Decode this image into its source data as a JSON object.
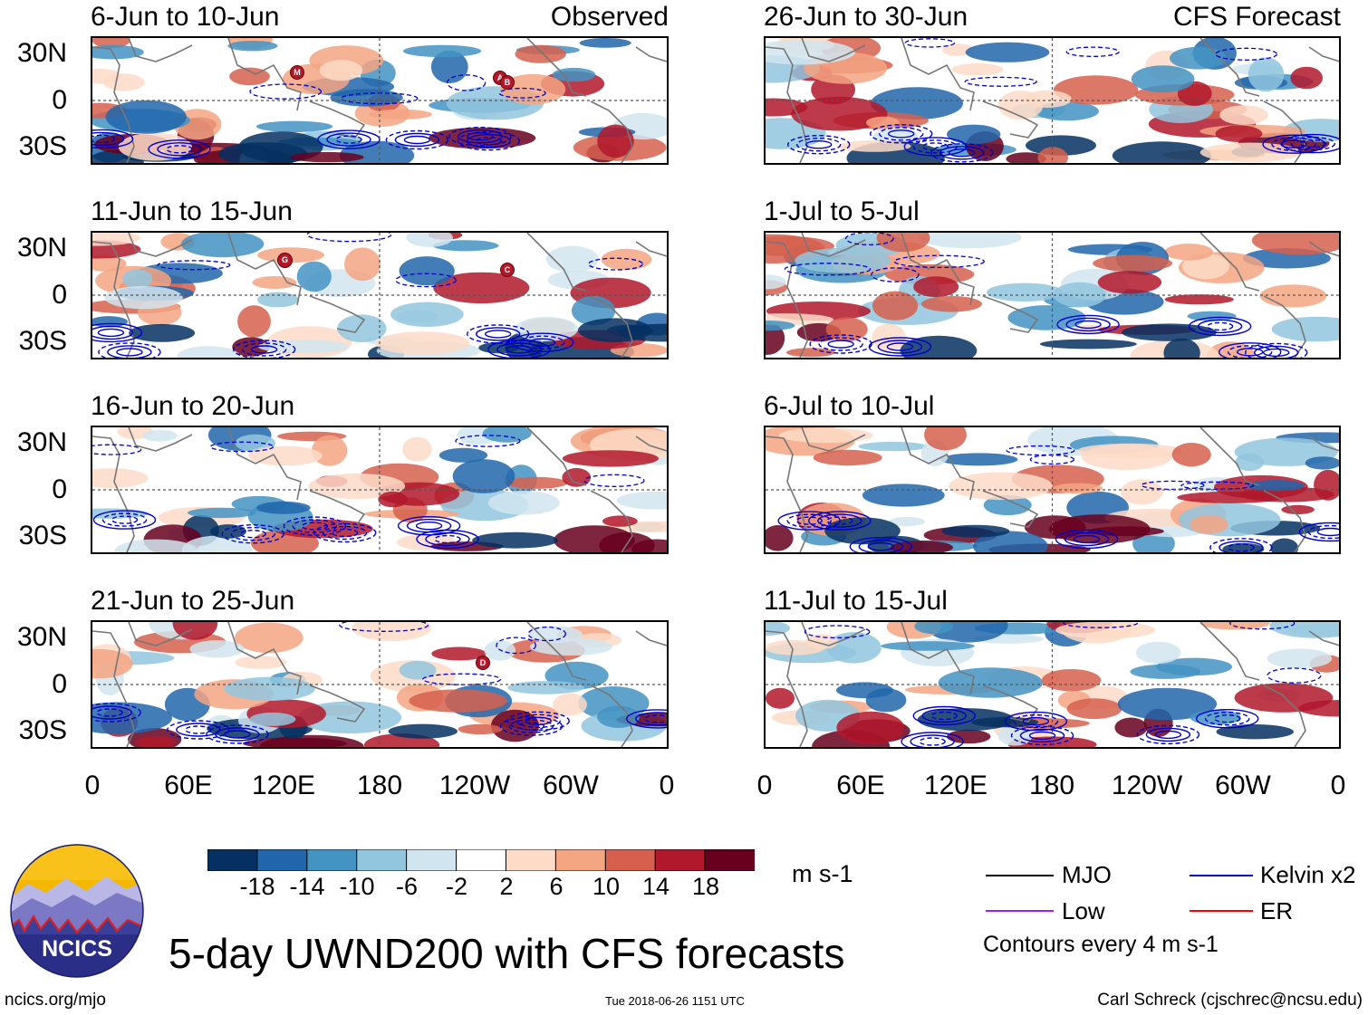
{
  "headers": {
    "observed": "Observed",
    "forecast": "CFS Forecast"
  },
  "panels": {
    "left": [
      {
        "title": "6-Jun to 10-Jun"
      },
      {
        "title": "11-Jun to 15-Jun"
      },
      {
        "title": "16-Jun to 20-Jun"
      },
      {
        "title": "21-Jun to 25-Jun"
      }
    ],
    "right": [
      {
        "title": "26-Jun to 30-Jun"
      },
      {
        "title": "1-Jul to 5-Jul"
      },
      {
        "title": "6-Jul to 10-Jul"
      },
      {
        "title": "11-Jul to 15-Jul"
      }
    ]
  },
  "axes": {
    "lat_labels": [
      "30N",
      "0",
      "30S"
    ],
    "lon_labels": [
      "0",
      "60E",
      "120E",
      "180",
      "120W",
      "60W",
      "0"
    ]
  },
  "storm_markers": {
    "p1": [
      "M",
      "A",
      "B"
    ],
    "p2": [
      "G",
      "C"
    ],
    "p4": [
      "D"
    ]
  },
  "colorbar": {
    "labels": [
      "-18",
      "-14",
      "-10",
      "-6",
      "-2",
      "2",
      "6",
      "10",
      "14",
      "18"
    ],
    "colors": [
      "#053061",
      "#2166ac",
      "#4393c3",
      "#92c5de",
      "#d1e5f0",
      "#ffffff",
      "#fddbc7",
      "#f4a582",
      "#d6604d",
      "#b2182b",
      "#67001f"
    ],
    "units": "m s-1"
  },
  "legend": {
    "items": [
      {
        "label": "MJO",
        "color": "#000000"
      },
      {
        "label": "Kelvin x2",
        "color": "#0000cc"
      },
      {
        "label": "Low",
        "color": "#a020f0"
      },
      {
        "label": "ER",
        "color": "#ff0000"
      }
    ],
    "note": "Contours every 4 m s-1"
  },
  "branding": {
    "logo_text": "NCICS",
    "title": "5-day UWND200 with CFS forecasts",
    "url": "ncics.org/mjo",
    "timestamp": "Tue 2018-06-26 1151 UTC",
    "credit": "Carl Schreck (cjschrec@ncsu.edu)"
  }
}
